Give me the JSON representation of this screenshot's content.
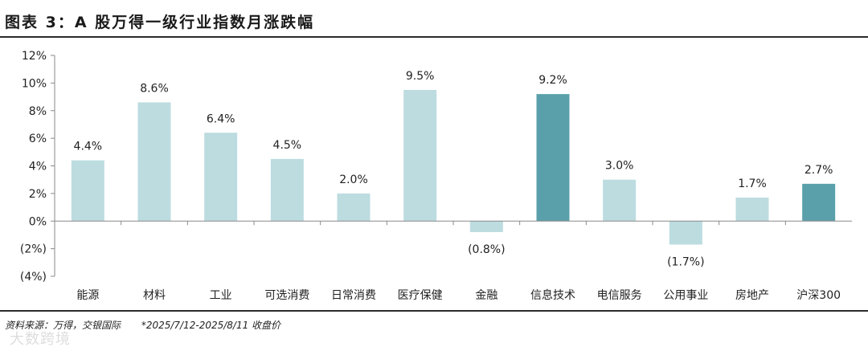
{
  "title": "图表 3：A 股万得一级行业指数月涨跌幅",
  "footer": {
    "source": "资料来源：万得，交银国际",
    "note": "*2025/7/12-2025/8/11 收盘价"
  },
  "watermark": "大数跨境",
  "colors": {
    "bar_light": "#bcdce0",
    "bar_highlight": "#5aa0ab",
    "axis": "#8a8a8a",
    "rule": "#2b2b2b"
  },
  "chart_data": {
    "type": "bar",
    "categories": [
      "能源",
      "材料",
      "工业",
      "可选消费",
      "日常消费",
      "医疗保健",
      "金融",
      "信息技术",
      "电信服务",
      "公用事业",
      "房地产",
      "沪深300"
    ],
    "values": [
      4.4,
      8.6,
      6.4,
      4.5,
      2.0,
      9.5,
      -0.8,
      9.2,
      3.0,
      -1.7,
      1.7,
      2.7
    ],
    "data_labels": [
      "4.4%",
      "8.6%",
      "6.4%",
      "4.5%",
      "2.0%",
      "9.5%",
      "(0.8%)",
      "9.2%",
      "3.0%",
      "(1.7%)",
      "1.7%",
      "2.7%"
    ],
    "highlighted": [
      false,
      false,
      false,
      false,
      false,
      false,
      false,
      true,
      false,
      false,
      false,
      true
    ],
    "y_ticks": [
      12,
      10,
      8,
      6,
      4,
      2,
      0,
      -2,
      -4
    ],
    "y_tick_labels": [
      "12%",
      "10%",
      "8%",
      "6%",
      "4%",
      "2%",
      "0%",
      "(2%)",
      "(4%)"
    ],
    "ylim": [
      -4,
      12
    ],
    "xlabel": "",
    "ylabel": "",
    "grid": false,
    "legend": "none"
  }
}
